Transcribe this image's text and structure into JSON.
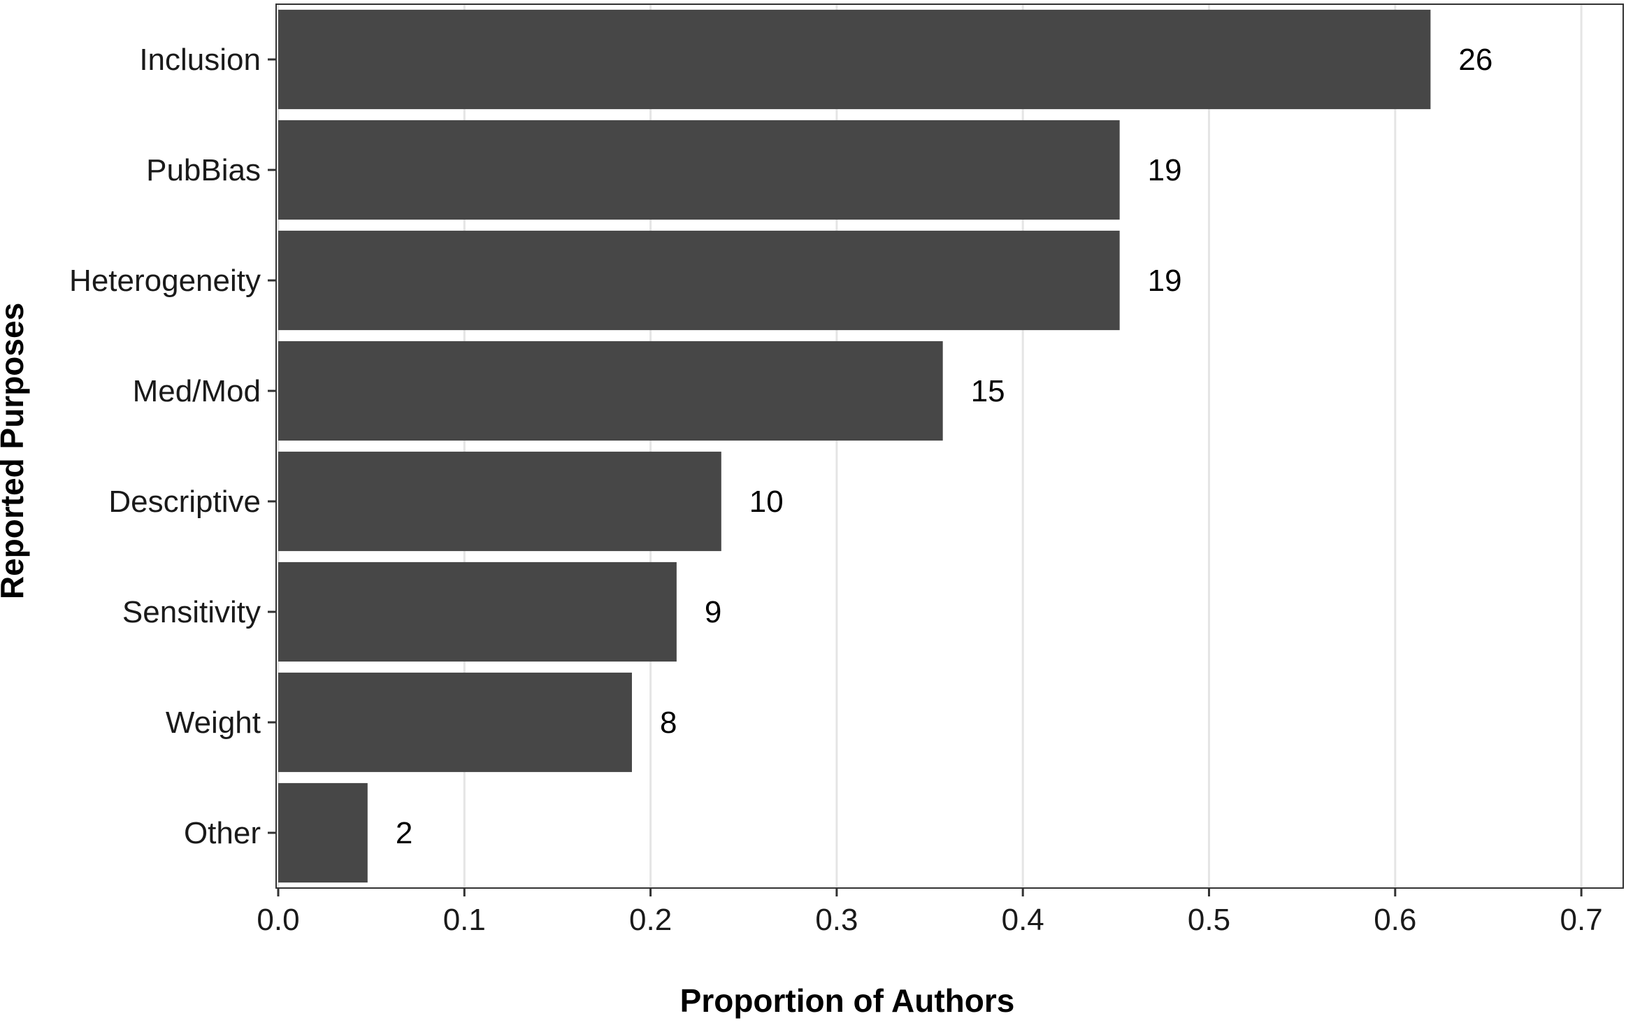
{
  "chart_data": {
    "type": "bar",
    "orientation": "horizontal",
    "categories": [
      "Inclusion",
      "PubBias",
      "Heterogeneity",
      "Med/Mod",
      "Descriptive",
      "Sensitivity",
      "Weight",
      "Other"
    ],
    "values": [
      0.619,
      0.452,
      0.452,
      0.357,
      0.238,
      0.214,
      0.19,
      0.048
    ],
    "data_labels": [
      "26",
      "19",
      "19",
      "15",
      "10",
      "9",
      "8",
      "2"
    ],
    "xlabel": "Proportion of Authors",
    "ylabel": "Reported Purposes",
    "xlim": [
      0,
      0.7
    ],
    "xticks": [
      "0.0",
      "0.1",
      "0.2",
      "0.3",
      "0.4",
      "0.5",
      "0.6",
      "0.7"
    ],
    "grid": "vertical",
    "bar_color": "#474747",
    "grid_color": "#e5e5e5",
    "legend": "none"
  }
}
